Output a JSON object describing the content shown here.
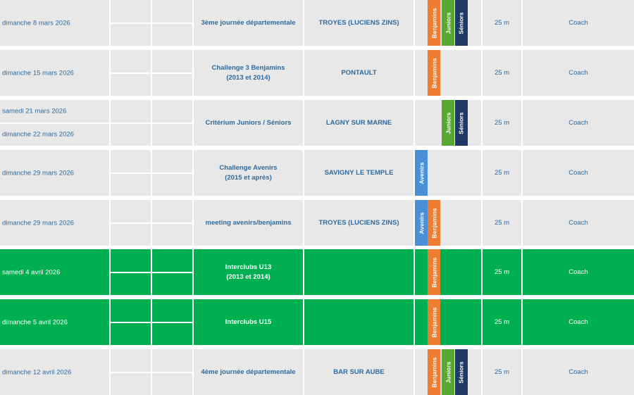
{
  "colors": {
    "row_bg": "#e8e8e8",
    "highlight_bg": "#00b050",
    "text": "#2e6a9e",
    "avenirs": "#4a90d9",
    "benjamins": "#ed7d31",
    "juniors": "#5aa832",
    "seniors": "#1f3864"
  },
  "rows": [
    {
      "dates": [
        "dimanche 8 mars 2026"
      ],
      "event": "3ème journée départementale",
      "event_sub": "",
      "place": "TROYES (LUCIENS ZINS)",
      "categories": [
        "Benjamins",
        "Juniors",
        "Séniors"
      ],
      "pool": "25 m",
      "coach": "Coach",
      "highlight": false
    },
    {
      "dates": [
        "dimanche 15 mars 2026"
      ],
      "event": "Challenge 3 Benjamins",
      "event_sub": "(2013 et 2014)",
      "place": "PONTAULT",
      "categories": [
        "Benjamins"
      ],
      "pool": "25 m",
      "coach": "Coach",
      "highlight": false
    },
    {
      "dates": [
        "samedi 21 mars 2026",
        "dimanche 22 mars 2026"
      ],
      "event": "Critérium Juniors / Séniors",
      "event_sub": "",
      "place": "LAGNY SUR MARNE",
      "categories": [
        "Juniors",
        "Séniors"
      ],
      "pool": "25 m",
      "coach": "Coach",
      "highlight": false
    },
    {
      "dates": [
        "dimanche 29 mars 2026"
      ],
      "event": "Challenge Avenirs",
      "event_sub": "(2015 et après)",
      "place": "SAVIGNY LE TEMPLE",
      "categories": [
        "Avenirs"
      ],
      "pool": "25 m",
      "coach": "Coach",
      "highlight": false
    },
    {
      "dates": [
        "dimanche 29 mars 2026"
      ],
      "event": "meeting avenirs/benjamins",
      "event_sub": "",
      "place": "TROYES (LUCIENS ZINS)",
      "categories": [
        "Avenirs",
        "Benjamins"
      ],
      "pool": "25 m",
      "coach": "Coach",
      "highlight": false
    },
    {
      "dates": [
        "samedi 4 avril 2026"
      ],
      "event": "Interclubs U13",
      "event_sub": "(2013 et 2014)",
      "place": "",
      "categories": [
        "Benjamins"
      ],
      "pool": "25 m",
      "coach": "Coach",
      "highlight": true
    },
    {
      "dates": [
        "dimanche 5 avril 2026"
      ],
      "event": "Interclubs U15",
      "event_sub": "",
      "place": "",
      "categories": [
        "Benjamins"
      ],
      "pool": "25 m",
      "coach": "Coach",
      "highlight": true
    },
    {
      "dates": [
        "dimanche 12 avril 2026"
      ],
      "event": "4ème journée départementale",
      "event_sub": "",
      "place": "BAR SUR AUBE",
      "categories": [
        "Benjamins",
        "Juniors",
        "Séniors"
      ],
      "pool": "25 m",
      "coach": "Coach",
      "highlight": false
    }
  ]
}
